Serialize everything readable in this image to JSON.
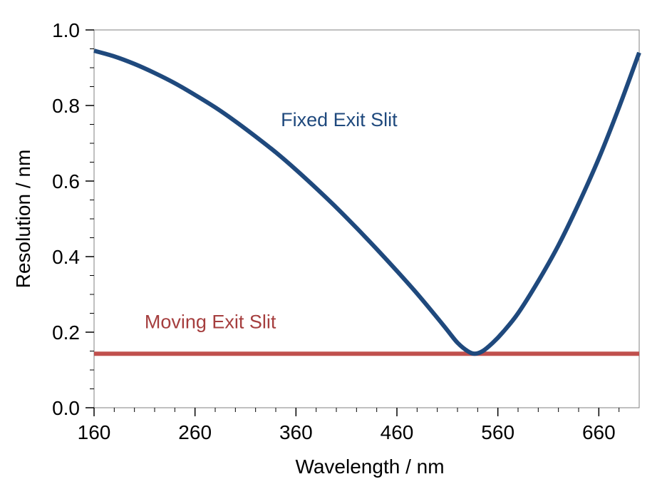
{
  "chart_data": {
    "type": "line",
    "title": "",
    "xlabel": "Wavelength  / nm",
    "ylabel": "Resolution  / nm",
    "xlim": [
      160,
      700
    ],
    "ylim": [
      0.0,
      1.0
    ],
    "x_ticks": [
      "160",
      "260",
      "360",
      "460",
      "560",
      "660"
    ],
    "x_tick_values": [
      160,
      260,
      360,
      460,
      560,
      660
    ],
    "y_ticks": [
      "0.0",
      "0.2",
      "0.4",
      "0.6",
      "0.8",
      "1.0"
    ],
    "y_tick_values": [
      0.0,
      0.2,
      0.4,
      0.6,
      0.8,
      1.0
    ],
    "grid": false,
    "legend": "none",
    "series": [
      {
        "name": "Fixed Exit Slit",
        "color": "#1f497d",
        "x": [
          160,
          180,
          200,
          220,
          240,
          260,
          280,
          300,
          320,
          340,
          360,
          380,
          400,
          420,
          440,
          460,
          480,
          500,
          510,
          520,
          530,
          537,
          545,
          555,
          565,
          580,
          600,
          620,
          640,
          660,
          680,
          700
        ],
        "y": [
          0.945,
          0.93,
          0.91,
          0.886,
          0.859,
          0.828,
          0.795,
          0.758,
          0.718,
          0.676,
          0.63,
          0.581,
          0.53,
          0.476,
          0.42,
          0.362,
          0.302,
          0.238,
          0.205,
          0.172,
          0.15,
          0.143,
          0.15,
          0.172,
          0.2,
          0.25,
          0.335,
          0.43,
          0.54,
          0.66,
          0.795,
          0.94
        ]
      },
      {
        "name": "Moving Exit Slit",
        "color": "#c0504d",
        "x": [
          160,
          700
        ],
        "y": [
          0.143,
          0.143
        ]
      }
    ],
    "annotations": [
      {
        "text": "Fixed Exit Slit",
        "color": "#1f497d",
        "x": 345,
        "y": 0.745
      },
      {
        "text": "Moving Exit Slit",
        "color": "#a53e3e",
        "x": 210,
        "y": 0.21
      }
    ]
  }
}
